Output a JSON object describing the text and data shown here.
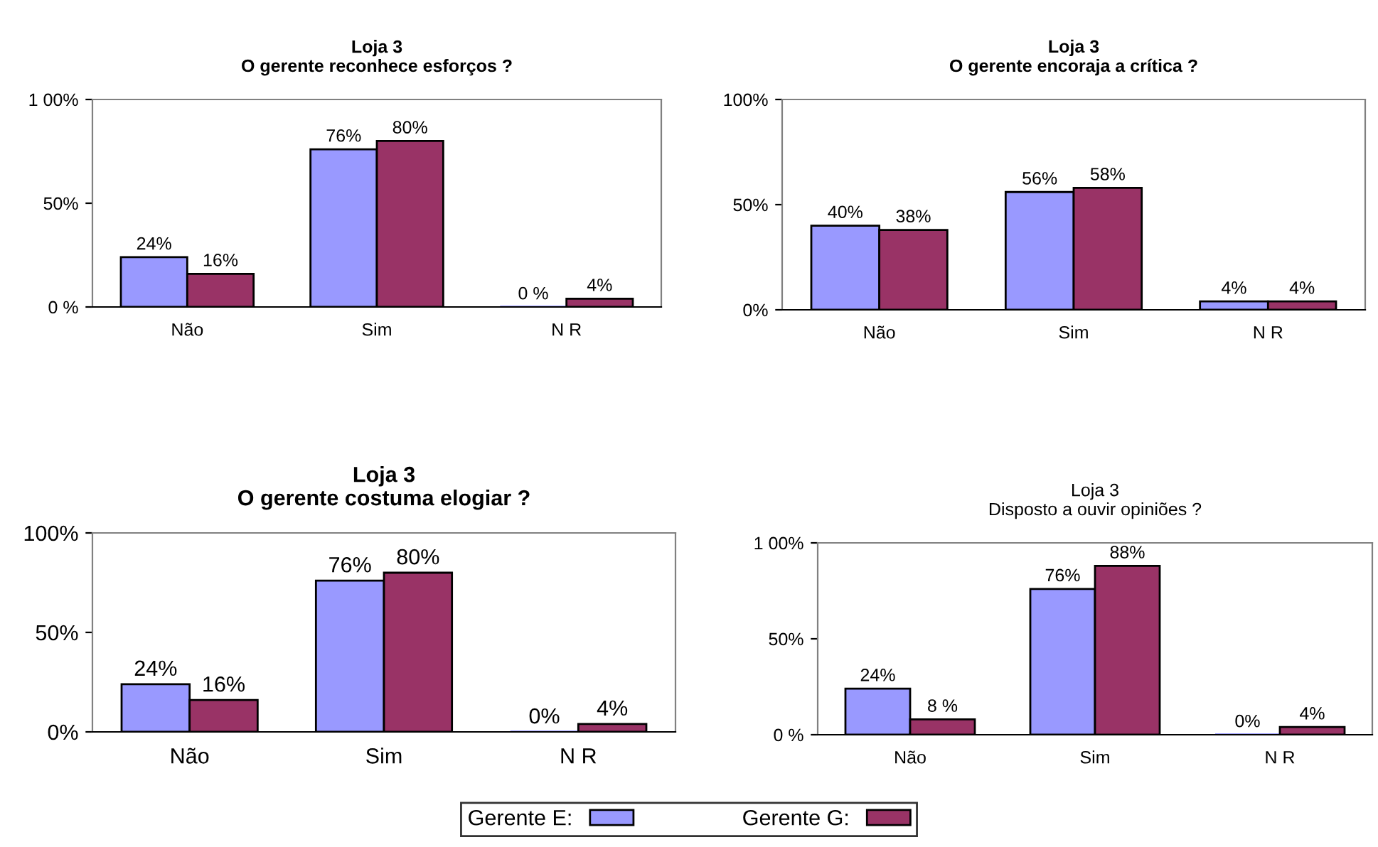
{
  "chart_data": [
    {
      "type": "bar",
      "title": "Loja 3\nO gerente reconhece esforços ?",
      "categories": [
        "Não",
        "Sim",
        "N R"
      ],
      "ylim": [
        0,
        100
      ],
      "yticks": [
        {
          "value": 0,
          "label": "0 %"
        },
        {
          "value": 50,
          "label": "50%"
        },
        {
          "value": 100,
          "label": "1 00%"
        }
      ],
      "grid": false,
      "legend": false,
      "series": [
        {
          "color": "#9999ff",
          "values": [
            24,
            76,
            0
          ],
          "value_labels": [
            "24%",
            "76%",
            "0 %"
          ]
        },
        {
          "color": "#993366",
          "values": [
            16,
            80,
            4
          ],
          "value_labels": [
            "16%",
            "80%",
            "4%"
          ]
        }
      ]
    },
    {
      "type": "bar",
      "title": "Loja 3\nO gerente encoraja a crítica ?",
      "categories": [
        "Não",
        "Sim",
        "N R"
      ],
      "ylim": [
        0,
        100
      ],
      "yticks": [
        {
          "value": 0,
          "label": "0%"
        },
        {
          "value": 50,
          "label": "50%"
        },
        {
          "value": 100,
          "label": "100%"
        }
      ],
      "grid": false,
      "legend": false,
      "series": [
        {
          "color": "#9999ff",
          "values": [
            40,
            56,
            4
          ],
          "value_labels": [
            "40%",
            "56%",
            "4%"
          ]
        },
        {
          "color": "#993366",
          "values": [
            38,
            58,
            4
          ],
          "value_labels": [
            "38%",
            "58%",
            "4%"
          ]
        }
      ]
    },
    {
      "type": "bar",
      "title": "Loja 3\nO gerente costuma elogiar ?",
      "categories": [
        "Não",
        "Sim",
        "N R"
      ],
      "ylim": [
        0,
        100
      ],
      "yticks": [
        {
          "value": 0,
          "label": "0%"
        },
        {
          "value": 50,
          "label": "50%"
        },
        {
          "value": 100,
          "label": "100%"
        }
      ],
      "grid": false,
      "legend": "bottom",
      "series": [
        {
          "name": "Gerente E:",
          "color": "#9999ff",
          "values": [
            24,
            76,
            0
          ],
          "value_labels": [
            "24%",
            "76%",
            "0%"
          ]
        },
        {
          "name": "Gerente G:",
          "color": "#993366",
          "values": [
            16,
            80,
            4
          ],
          "value_labels": [
            "16%",
            "80%",
            "4%"
          ]
        }
      ]
    },
    {
      "type": "bar",
      "title": "Loja 3\nDisposto a ouvir opiniões ?",
      "categories": [
        "Não",
        "Sim",
        "N R"
      ],
      "ylim": [
        0,
        100
      ],
      "yticks": [
        {
          "value": 0,
          "label": "0 %"
        },
        {
          "value": 50,
          "label": "50%"
        },
        {
          "value": 100,
          "label": "1 00%"
        }
      ],
      "grid": false,
      "legend": false,
      "series": [
        {
          "color": "#9999ff",
          "values": [
            24,
            76,
            0
          ],
          "value_labels": [
            "24%",
            "76%",
            "0%"
          ]
        },
        {
          "color": "#993366",
          "values": [
            8,
            88,
            4
          ],
          "value_labels": [
            "8 %",
            "88%",
            "4%"
          ]
        }
      ]
    }
  ]
}
